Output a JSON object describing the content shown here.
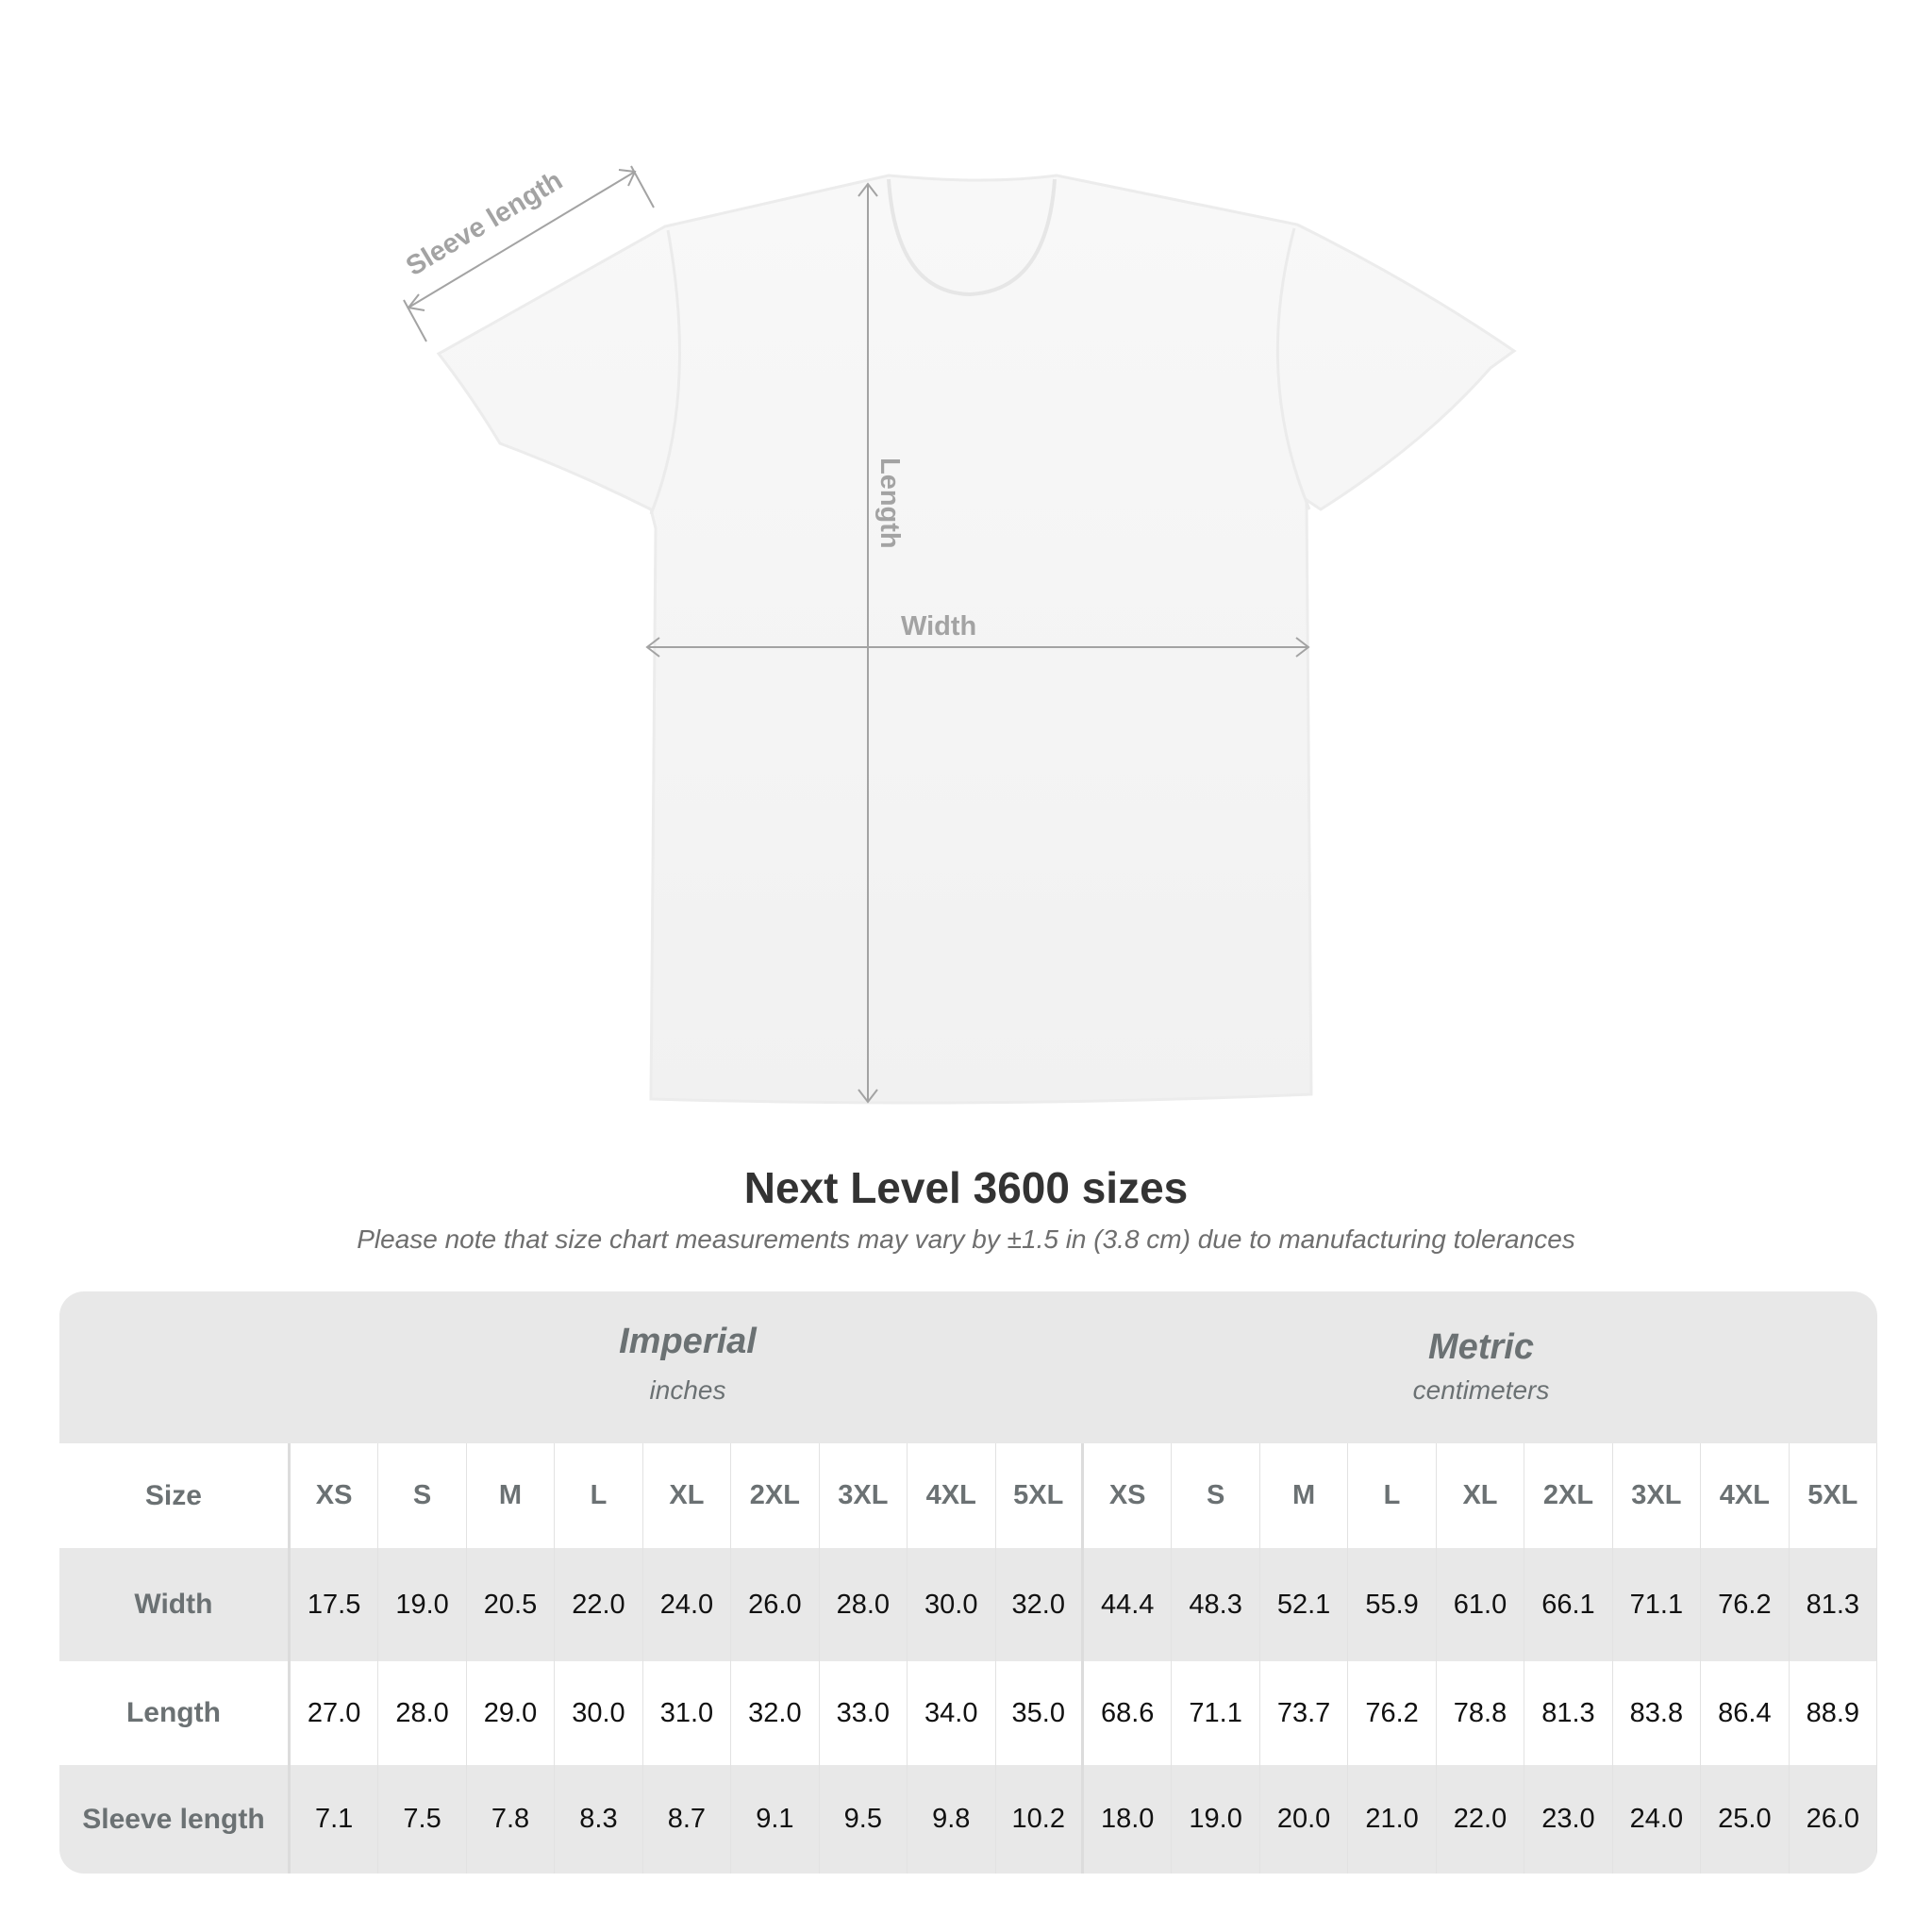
{
  "diagram": {
    "labels": {
      "sleeve": "Sleeve length",
      "length": "Length",
      "width": "Width"
    }
  },
  "title": "Next Level 3600 sizes",
  "subtitle": "Please note that size chart measurements may vary by ±1.5 in (3.8 cm) due to manufacturing tolerances",
  "table": {
    "imperial": {
      "name": "Imperial",
      "unit": "inches"
    },
    "metric": {
      "name": "Metric",
      "unit": "centimeters"
    },
    "size_label": "Size",
    "sizes": [
      "XS",
      "S",
      "M",
      "L",
      "XL",
      "2XL",
      "3XL",
      "4XL",
      "5XL"
    ],
    "rows": [
      {
        "label": "Width",
        "imperial": [
          "17.5",
          "19.0",
          "20.5",
          "22.0",
          "24.0",
          "26.0",
          "28.0",
          "30.0",
          "32.0"
        ],
        "metric": [
          "44.4",
          "48.3",
          "52.1",
          "55.9",
          "61.0",
          "66.1",
          "71.1",
          "76.2",
          "81.3"
        ]
      },
      {
        "label": "Length",
        "imperial": [
          "27.0",
          "28.0",
          "29.0",
          "30.0",
          "31.0",
          "32.0",
          "33.0",
          "34.0",
          "35.0"
        ],
        "metric": [
          "68.6",
          "71.1",
          "73.7",
          "76.2",
          "78.8",
          "81.3",
          "83.8",
          "86.4",
          "88.9"
        ]
      },
      {
        "label": "Sleeve length",
        "imperial": [
          "7.1",
          "7.5",
          "7.8",
          "8.3",
          "8.7",
          "9.1",
          "9.5",
          "9.8",
          "10.2"
        ],
        "metric": [
          "18.0",
          "19.0",
          "20.0",
          "21.0",
          "22.0",
          "23.0",
          "24.0",
          "25.0",
          "26.0"
        ]
      }
    ]
  },
  "colors": {
    "band": "#e8e8e8",
    "header_text": "#6b7173",
    "measure_line": "#a3a3a3"
  }
}
